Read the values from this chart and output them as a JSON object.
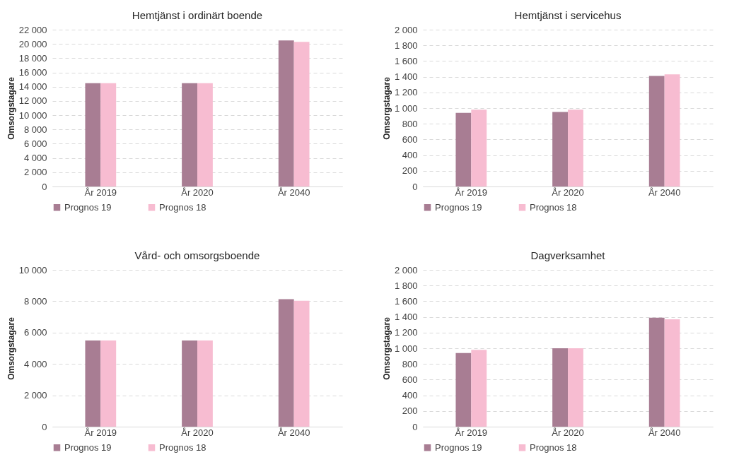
{
  "chart_data": [
    {
      "type": "bar",
      "title": "Hemtjänst i ordinärt boende",
      "ylabel": "Omsorgstagare",
      "categories": [
        "År 2019",
        "År 2020",
        "År 2040"
      ],
      "series": [
        {
          "name": "Prognos 19",
          "color": "#a87d93",
          "values": [
            14500,
            14500,
            20500
          ]
        },
        {
          "name": "Prognos 18",
          "color": "#f7bcd1",
          "values": [
            14500,
            14500,
            20300
          ]
        }
      ],
      "ylim": [
        0,
        22000
      ],
      "yticks": [
        0,
        {
          "value": 2000,
          "label": "2 000"
        },
        {
          "value": 4000,
          "label": "4 000"
        },
        {
          "value": 6000,
          "label": "6 000"
        },
        {
          "value": 8000,
          "label": "8 000"
        },
        {
          "value": 10000,
          "label": "10 000"
        },
        {
          "value": 12000,
          "label": "12 000"
        },
        {
          "value": 14000,
          "label": "14 000"
        },
        {
          "value": 16000,
          "label": "16 000"
        },
        {
          "value": 18000,
          "label": "18 000"
        },
        {
          "value": 20000,
          "label": "20 000"
        },
        {
          "value": 22000,
          "label": "22 000"
        }
      ],
      "grid": "y",
      "legend": "bottom"
    },
    {
      "type": "bar",
      "title": "Hemtjänst i servicehus",
      "ylabel": "Omsorgstagare",
      "categories": [
        "År 2019",
        "År 2020",
        "År 2040"
      ],
      "series": [
        {
          "name": "Prognos 19",
          "color": "#a87d93",
          "values": [
            940,
            950,
            1410
          ]
        },
        {
          "name": "Prognos 18",
          "color": "#f7bcd1",
          "values": [
            980,
            980,
            1430
          ]
        }
      ],
      "ylim": [
        0,
        2000
      ],
      "yticks": [
        0,
        200,
        400,
        600,
        800,
        {
          "value": 1000,
          "label": "1 000"
        },
        {
          "value": 1200,
          "label": "1 200"
        },
        {
          "value": 1400,
          "label": "1 400"
        },
        {
          "value": 1600,
          "label": "1 600"
        },
        {
          "value": 1800,
          "label": "1 800"
        },
        {
          "value": 2000,
          "label": "2 000"
        }
      ],
      "grid": "y",
      "legend": "bottom"
    },
    {
      "type": "bar",
      "title": "Vård- och omsorgsboende",
      "ylabel": "Omsorgstagare",
      "categories": [
        "År 2019",
        "År 2020",
        "År 2040"
      ],
      "series": [
        {
          "name": "Prognos 19",
          "color": "#a87d93",
          "values": [
            5500,
            5500,
            8130
          ]
        },
        {
          "name": "Prognos 18",
          "color": "#f7bcd1",
          "values": [
            5500,
            5500,
            8030
          ]
        }
      ],
      "ylim": [
        0,
        10000
      ],
      "yticks": [
        0,
        {
          "value": 2000,
          "label": "2 000"
        },
        {
          "value": 4000,
          "label": "4 000"
        },
        {
          "value": 6000,
          "label": "6 000"
        },
        {
          "value": 8000,
          "label": "8 000"
        },
        {
          "value": 10000,
          "label": "10 000"
        }
      ],
      "grid": "y",
      "legend": "bottom"
    },
    {
      "type": "bar",
      "title": "Dagverksamhet",
      "ylabel": "Omsorgstagare",
      "categories": [
        "År 2019",
        "År 2020",
        "År 2040"
      ],
      "series": [
        {
          "name": "Prognos 19",
          "color": "#a87d93",
          "values": [
            940,
            1000,
            1390
          ]
        },
        {
          "name": "Prognos 18",
          "color": "#f7bcd1",
          "values": [
            980,
            1000,
            1370
          ]
        }
      ],
      "ylim": [
        0,
        2000
      ],
      "yticks": [
        0,
        200,
        400,
        600,
        800,
        {
          "value": 1000,
          "label": "1 000"
        },
        {
          "value": 1200,
          "label": "1 200"
        },
        {
          "value": 1400,
          "label": "1 400"
        },
        {
          "value": 1600,
          "label": "1 600"
        },
        {
          "value": 1800,
          "label": "1 800"
        },
        {
          "value": 2000,
          "label": "2 000"
        }
      ],
      "grid": "y",
      "legend": "bottom"
    }
  ]
}
